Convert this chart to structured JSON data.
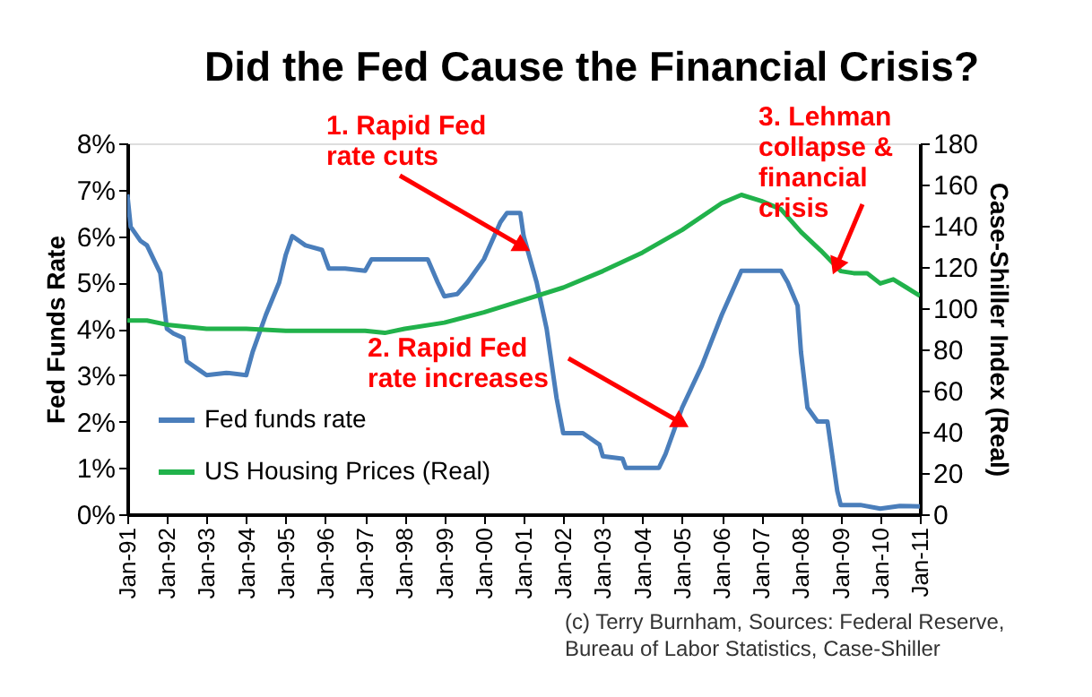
{
  "chart_data": {
    "type": "line",
    "title": "Did the Fed Cause the Financial Crisis?",
    "ylabel": "Fed Funds Rate",
    "y2label": "Case-Shiller Index (Real)",
    "xlim": [
      "1991-01",
      "2011-01"
    ],
    "xticks": [
      {
        "value": "1991-01",
        "label": "Jan-91"
      },
      {
        "value": "1992-01",
        "label": "Jan-92"
      },
      {
        "value": "1993-01",
        "label": "Jan-93"
      },
      {
        "value": "1994-01",
        "label": "Jan-94"
      },
      {
        "value": "1995-01",
        "label": "Jan-95"
      },
      {
        "value": "1996-01",
        "label": "Jan-96"
      },
      {
        "value": "1997-01",
        "label": "Jan-97"
      },
      {
        "value": "1998-01",
        "label": "Jan-98"
      },
      {
        "value": "1999-01",
        "label": "Jan-99"
      },
      {
        "value": "2000-01",
        "label": "Jan-00"
      },
      {
        "value": "2001-01",
        "label": "Jan-01"
      },
      {
        "value": "2002-01",
        "label": "Jan-02"
      },
      {
        "value": "2003-01",
        "label": "Jan-03"
      },
      {
        "value": "2004-01",
        "label": "Jan-04"
      },
      {
        "value": "2005-01",
        "label": "Jan-05"
      },
      {
        "value": "2006-01",
        "label": "Jan-06"
      },
      {
        "value": "2007-01",
        "label": "Jan-07"
      },
      {
        "value": "2008-01",
        "label": "Jan-08"
      },
      {
        "value": "2009-01",
        "label": "Jan-09"
      },
      {
        "value": "2010-01",
        "label": "Jan-10"
      },
      {
        "value": "2011-01",
        "label": "Jan-11"
      }
    ],
    "ylim": [
      0,
      8
    ],
    "yticks": [
      {
        "value": 0,
        "label": "0%"
      },
      {
        "value": 1,
        "label": "1%"
      },
      {
        "value": 2,
        "label": "2%"
      },
      {
        "value": 3,
        "label": "3%"
      },
      {
        "value": 4,
        "label": "4%"
      },
      {
        "value": 5,
        "label": "5%"
      },
      {
        "value": 6,
        "label": "6%"
      },
      {
        "value": 7,
        "label": "7%"
      },
      {
        "value": 8,
        "label": "8%"
      }
    ],
    "y2lim": [
      0,
      180
    ],
    "y2ticks": [
      0,
      20,
      40,
      60,
      80,
      100,
      120,
      140,
      160,
      180
    ],
    "grid": false,
    "legend": "bottom left",
    "line_style": "solid",
    "series": [
      {
        "name": "Fed funds rate",
        "color": "#4a7ebb",
        "x": [
          "1991-01",
          "1991-02",
          "1991-05",
          "1991-07",
          "1991-11",
          "1992-01",
          "1992-03",
          "1992-06",
          "1992-07",
          "1992-11",
          "1993-01",
          "1993-07",
          "1994-01",
          "1994-03",
          "1994-07",
          "1994-11",
          "1995-01",
          "1995-03",
          "1995-07",
          "1995-12",
          "1996-02",
          "1996-07",
          "1997-01",
          "1997-03",
          "1997-07",
          "1998-01",
          "1998-08",
          "1998-11",
          "1999-01",
          "1999-05",
          "1999-08",
          "2000-01",
          "2000-06",
          "2000-08",
          "2000-12",
          "2001-01",
          "2001-05",
          "2001-08",
          "2001-11",
          "2002-01",
          "2002-07",
          "2002-12",
          "2003-01",
          "2003-07",
          "2003-08",
          "2004-06",
          "2004-08",
          "2005-01",
          "2005-07",
          "2006-01",
          "2006-07",
          "2007-07",
          "2007-09",
          "2007-12",
          "2008-01",
          "2008-03",
          "2008-06",
          "2008-09",
          "2008-12",
          "2009-01",
          "2009-07",
          "2010-01",
          "2010-07",
          "2011-01"
        ],
        "values": [
          6.9,
          6.2,
          5.9,
          5.8,
          5.2,
          4.0,
          3.9,
          3.8,
          3.3,
          3.1,
          3.0,
          3.05,
          3.0,
          3.5,
          4.3,
          5.0,
          5.6,
          6.0,
          5.8,
          5.7,
          5.3,
          5.3,
          5.25,
          5.5,
          5.5,
          5.5,
          5.5,
          5.0,
          4.7,
          4.75,
          5.0,
          5.5,
          6.3,
          6.5,
          6.5,
          6.0,
          5.0,
          4.0,
          2.5,
          1.75,
          1.75,
          1.5,
          1.25,
          1.2,
          1.0,
          1.0,
          1.3,
          2.3,
          3.2,
          4.3,
          5.25,
          5.25,
          5.0,
          4.5,
          3.5,
          2.3,
          2.0,
          2.0,
          0.5,
          0.2,
          0.2,
          0.12,
          0.18,
          0.17
        ]
      },
      {
        "name": "US Housing Prices (Real)",
        "color": "#21b24b",
        "axis": "y2",
        "x": [
          "1991-01",
          "1991-07",
          "1992-01",
          "1993-01",
          "1994-01",
          "1995-01",
          "1996-01",
          "1997-01",
          "1997-07",
          "1998-01",
          "1999-01",
          "2000-01",
          "2001-01",
          "2002-01",
          "2003-01",
          "2004-01",
          "2005-01",
          "2006-01",
          "2006-07",
          "2007-01",
          "2007-07",
          "2008-01",
          "2008-07",
          "2009-01",
          "2009-05",
          "2009-09",
          "2010-01",
          "2010-05",
          "2010-09",
          "2011-01"
        ],
        "values": [
          94,
          94,
          92,
          90,
          90,
          89,
          89,
          89,
          88,
          90,
          93,
          98,
          104,
          110,
          118,
          127,
          138,
          151,
          155,
          152,
          148,
          137,
          128,
          118,
          117,
          117,
          112,
          114,
          110,
          106
        ]
      }
    ],
    "annotations": [
      {
        "text": "1. Rapid Fed\nrate cuts",
        "x": "2000-12",
        "y": 5.8
      },
      {
        "text": "2. Rapid Fed\nrate increases",
        "x": "2004-12",
        "y": 2.0
      },
      {
        "text": "3. Lehman\ncollapse &\nfinancial\ncrisis",
        "x": "2008-12",
        "y": 5.4
      },
      "(c) Terry Burnham, Sources: Federal Reserve,\nBureau of Labor Statistics, Case-Shiller"
    ]
  }
}
